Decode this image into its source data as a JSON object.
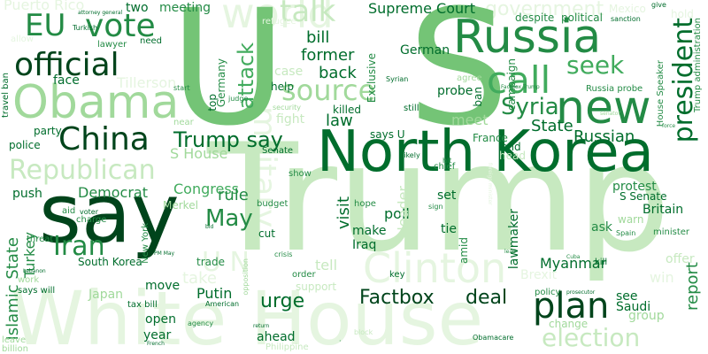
{
  "palette": {
    "darkest": "#00441b",
    "dark": "#006d2c",
    "mid": "#238b45",
    "medium": "#41ab5d",
    "light": "#74c476",
    "lighter": "#a1d99b",
    "pale": "#c7e9c0",
    "faint": "#e5f5e0"
  },
  "words": {
    "trump": "Trump",
    "us": "U S",
    "white_house": "White House",
    "north_korea": "North Korea",
    "say": "say",
    "russia": "Russia",
    "obama": "Obama",
    "new": "new",
    "china": "China",
    "republican": "Republican",
    "clinton": "Clinton",
    "election": "election",
    "plan": "plan",
    "official": "official",
    "eu": "EU",
    "vote": "vote",
    "talk": "talk",
    "source": "source",
    "call": "call",
    "seek": "seek",
    "syria": "Syria",
    "president": "president",
    "iran": "Iran",
    "may": "May",
    "un": "U N",
    "military": "military",
    "attack": "attack",
    "trump_say": "Trump say",
    "state": "State",
    "russian": "Russian",
    "islamic_state": "Islamic State",
    "turkey": "Turkey",
    "tillerson": "Tillerson",
    "democrat": "Democrat",
    "congress": "Congress",
    "factbox": "Factbox",
    "deal": "deal",
    "urge": "urge",
    "myanmar": "Myanmar",
    "report": "report",
    "visit": "visit",
    "supreme_court": "Supreme Court",
    "government": "government",
    "puerto_rico": "Puerto Rico",
    "world": "world",
    "two": "two",
    "meeting": "meeting",
    "bill": "bill",
    "former": "former",
    "back": "back",
    "law": "law",
    "german": "German",
    "probe": "probe",
    "exclusive": "Exclusive",
    "meet": "meet",
    "says_u": "says U",
    "france": "France",
    "s_house": "S House",
    "fight": "fight",
    "killed": "killed",
    "case": "case",
    "help": "help",
    "face": "face",
    "party": "party",
    "police": "police",
    "push": "push",
    "rule": "rule",
    "poll": "poll",
    "make": "make",
    "iraq": "Iraq",
    "set": "set",
    "tie": "tie",
    "leader": "leader",
    "lawmaker": "lawmaker",
    "protest": "protest",
    "s_senate": "S Senate",
    "britain": "Britain",
    "ask": "ask",
    "warn": "warn",
    "south_korea": "South Korea",
    "move": "move",
    "putin": "Putin",
    "trade": "trade",
    "cut": "cut",
    "japan": "Japan",
    "open": "open",
    "year": "year",
    "ahead": "ahead",
    "saudi": "Saudi",
    "see": "see",
    "group": "group",
    "change": "change",
    "tell": "tell",
    "support": "support",
    "take": "take",
    "offer": "offer",
    "kill": "kill",
    "win": "win",
    "policy": "policy",
    "brexit": "Brexit",
    "key": "key",
    "end": "end",
    "head": "head",
    "chief": "chief",
    "campaign": "campaign",
    "ban": "ban",
    "travel_ban": "travel ban",
    "germany": "Germany",
    "top": "top",
    "merkel": "Merkel",
    "new_york": "New York",
    "need": "need",
    "lawyer": "lawyer",
    "senate": "Senate",
    "budget": "budget",
    "show": "show",
    "hope": "hope",
    "amid": "amid",
    "threat": "threat",
    "charge": "charge",
    "aid": "aid",
    "voter": "voter",
    "work": "work",
    "says_will": "says will",
    "tax_bill": "tax bill",
    "leave": "leave",
    "billion": "billion",
    "opposition": "opposition",
    "crisis": "crisis",
    "order": "order",
    "american": "American",
    "obamacare": "Obamacare",
    "philippine": "Philippine",
    "agency": "agency",
    "house_speaker": "House Speaker",
    "trump_administration": "Trump administration",
    "despite": "despite",
    "political": "political",
    "sanction": "sanction",
    "give": "give",
    "hold": "hold",
    "mexico": "Mexico",
    "turkish": "Turkish",
    "attorney_general": "attorney general",
    "syrian": "Syrian",
    "agree": "agree",
    "still": "still",
    "russia_probe": "Russia probe",
    "factbox_trump": "Factbox Trump",
    "judge": "judge",
    "start": "start",
    "security": "security",
    "near": "near",
    "senator": "senator",
    "force": "force",
    "likely": "likely",
    "hit": "hit",
    "spain": "Spain",
    "minister": "minister",
    "cuba": "Cuba",
    "lead": "lead",
    "prosecutor": "prosecutor",
    "pm_may": "PM May",
    "lebanon": "Lebanon",
    "french": "French",
    "bid": "bid",
    "return": "return",
    "sign": "sign",
    "block": "block",
    "foreign_minister": "foreign minister",
    "refugee": "refugee",
    "allow": "allow",
    "new_dot": "·",
    "senate_dot": "·"
  }
}
